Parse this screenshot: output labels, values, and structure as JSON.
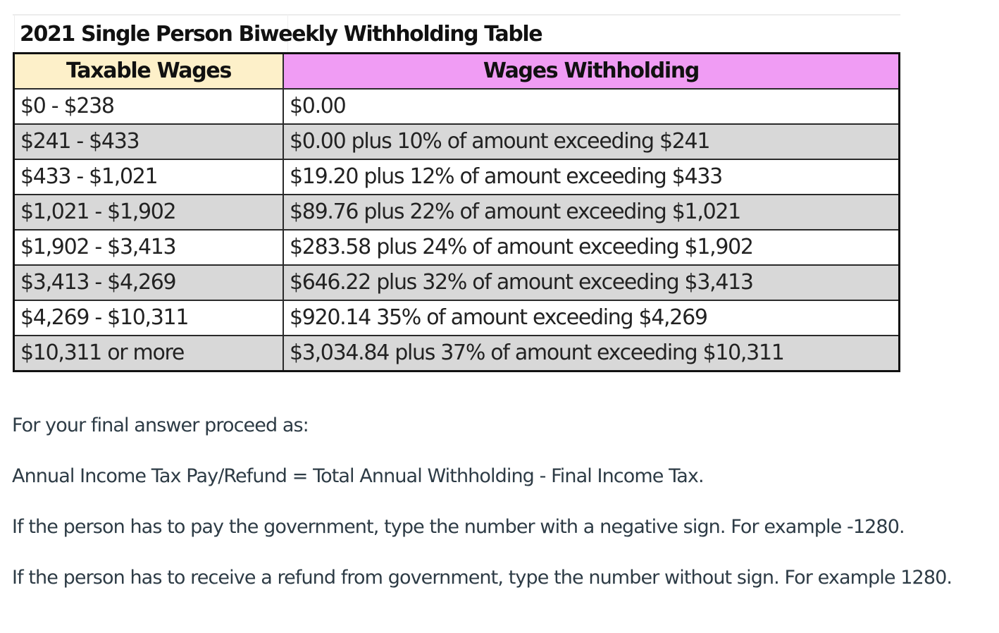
{
  "table": {
    "title": "2021 Single Person Biweekly Withholding Table",
    "headers": {
      "taxable_wages": "Taxable Wages",
      "wages_withholding": "Wages Withholding"
    },
    "header_colors": {
      "taxable_wages": "#fdf0c9",
      "wages_withholding": "#f09cf4"
    },
    "rows": [
      {
        "wages": "$0 - $238",
        "withholding": "$0.00"
      },
      {
        "wages": "$241 - $433",
        "withholding": "$0.00 plus 10% of amount exceeding $241"
      },
      {
        "wages": "$433 - $1,021",
        "withholding": "$19.20 plus 12% of amount exceeding $433"
      },
      {
        "wages": "$1,021 - $1,902",
        "withholding": "$89.76 plus 22% of amount exceeding $1,021"
      },
      {
        "wages": "$1,902 - $3,413",
        "withholding": "$283.58 plus 24% of amount exceeding $1,902"
      },
      {
        "wages": "$3,413 - $4,269",
        "withholding": "$646.22 plus 32% of amount exceeding $3,413"
      },
      {
        "wages": "$4,269 - $10,311",
        "withholding": "$920.14 35% of amount exceeding $4,269"
      },
      {
        "wages": "$10,311 or more",
        "withholding": "$3,034.84 plus 37% of amount exceeding $10,311"
      }
    ]
  },
  "instructions": {
    "intro": "For your final answer proceed as:",
    "formula": "Annual Income Tax Pay/Refund = Total Annual Withholding - Final Income Tax.",
    "pay_rule": "If the person has to pay the government, type the number with a negative sign. For example -1280.",
    "refund_rule": "If the person has to receive a refund from government, type the number without sign. For example 1280."
  }
}
